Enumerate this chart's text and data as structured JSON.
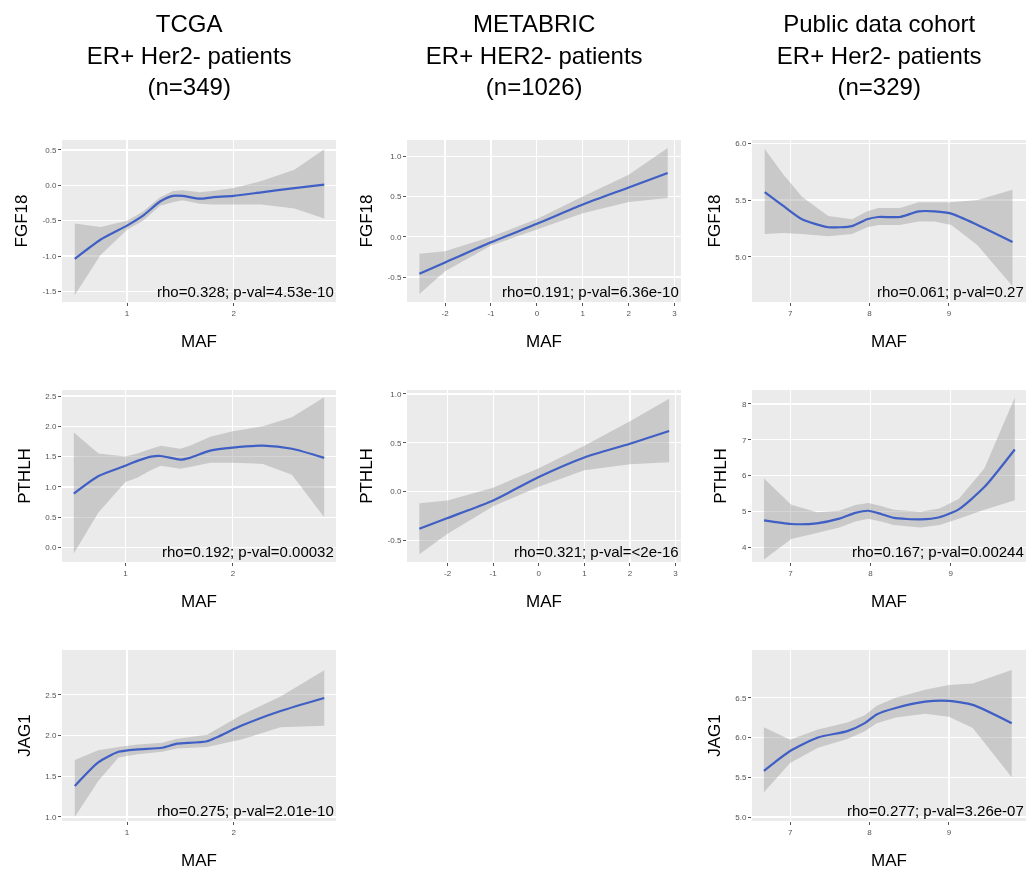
{
  "chart_data": [
    {
      "type": "line",
      "title": "TCGA\nER+ Her2- patients\n(n=349)",
      "xlabel": "MAF",
      "ylabel": "FGF18",
      "grid": true,
      "xlim": [
        0.39,
        2.96
      ],
      "xticks": [
        1,
        2
      ],
      "ylim": [
        -1.65,
        0.64
      ],
      "yticks": [
        {
          "value": 0.5,
          "label": "0.5"
        },
        {
          "value": 0,
          "label": "0.0"
        },
        {
          "value": -0.5,
          "label": "-0.5"
        },
        {
          "value": -1,
          "label": "-1.0"
        },
        {
          "value": -1.5,
          "label": "-1.5"
        }
      ],
      "annotations": [
        "rho=0.328; p-val=4.53e-10"
      ],
      "series": [
        {
          "color": "#3f5fc4",
          "x": [
            0.51,
            0.75,
            1.0,
            1.15,
            1.31,
            1.43,
            1.52,
            1.68,
            1.8,
            2.0,
            2.26,
            2.57,
            2.85
          ],
          "values": [
            -1.04,
            -0.77,
            -0.57,
            -0.43,
            -0.23,
            -0.15,
            -0.15,
            -0.19,
            -0.17,
            -0.15,
            -0.1,
            -0.04,
            0.01
          ],
          "lower": [
            -1.55,
            -0.99,
            -0.63,
            -0.5,
            -0.29,
            -0.24,
            -0.21,
            -0.26,
            -0.27,
            -0.27,
            -0.27,
            -0.33,
            -0.47
          ],
          "upper": [
            -0.54,
            -0.59,
            -0.5,
            -0.37,
            -0.17,
            -0.08,
            -0.07,
            -0.1,
            -0.08,
            -0.04,
            0.06,
            0.22,
            0.51
          ]
        }
      ]
    },
    {
      "type": "line",
      "title": "METABRIC\nER+ HER2- patients\n(n=1026)",
      "xlabel": "MAF",
      "ylabel": "FGF18",
      "grid": true,
      "xlim": [
        -2.83,
        3.14
      ],
      "xticks": [
        -2,
        -1,
        0,
        1,
        2,
        3
      ],
      "ylim": [
        -0.81,
        1.2
      ],
      "yticks": [
        {
          "value": 1,
          "label": "1.0"
        },
        {
          "value": 0.5,
          "label": "0.5"
        },
        {
          "value": 0,
          "label": "0.0"
        },
        {
          "value": -0.5,
          "label": "-0.5"
        }
      ],
      "annotations": [
        "rho=0.191; p-val=6.36e-10"
      ],
      "series": [
        {
          "color": "#3f5fc4",
          "x": [
            -2.56,
            -2,
            -1,
            0,
            1,
            2,
            2.85
          ],
          "values": [
            -0.46,
            -0.32,
            -0.07,
            0.16,
            0.4,
            0.61,
            0.79
          ],
          "lower": [
            -0.71,
            -0.43,
            -0.11,
            0.09,
            0.29,
            0.43,
            0.48
          ],
          "upper": [
            -0.21,
            -0.18,
            0.0,
            0.22,
            0.5,
            0.77,
            1.1
          ]
        }
      ]
    },
    {
      "type": "line",
      "title": "Public data cohort\nER+ Her2- patients\n(n=329)",
      "xlabel": "MAF",
      "ylabel": "FGF18",
      "grid": true,
      "xlim": [
        6.52,
        9.97
      ],
      "xticks": [
        7,
        8,
        9
      ],
      "ylim": [
        4.6,
        6.03
      ],
      "yticks": [
        {
          "value": 6,
          "label": "6.0"
        },
        {
          "value": 5.5,
          "label": "5.5"
        },
        {
          "value": 5,
          "label": "5.0"
        }
      ],
      "annotations": [
        "rho=0.061; p-val=0.27"
      ],
      "series": [
        {
          "color": "#3f5fc4",
          "x": [
            6.68,
            6.91,
            7.15,
            7.48,
            7.78,
            7.97,
            8.11,
            8.38,
            8.62,
            8.82,
            9.03,
            9.36,
            9.8
          ],
          "values": [
            5.57,
            5.45,
            5.33,
            5.26,
            5.27,
            5.33,
            5.35,
            5.35,
            5.4,
            5.4,
            5.38,
            5.28,
            5.13
          ],
          "lower": [
            5.2,
            5.21,
            5.2,
            5.18,
            5.2,
            5.26,
            5.28,
            5.28,
            5.31,
            5.31,
            5.28,
            5.1,
            4.74
          ],
          "upper": [
            5.95,
            5.73,
            5.53,
            5.36,
            5.33,
            5.4,
            5.43,
            5.43,
            5.48,
            5.48,
            5.48,
            5.5,
            5.59
          ]
        }
      ]
    },
    {
      "type": "line",
      "xlabel": "MAF",
      "ylabel": "PTHLH",
      "grid": true,
      "xlim": [
        0.41,
        2.96
      ],
      "xticks": [
        1,
        2
      ],
      "ylim": [
        -0.24,
        2.6
      ],
      "yticks": [
        {
          "value": 2.5,
          "label": "2.5"
        },
        {
          "value": 2,
          "label": "2.0"
        },
        {
          "value": 1.5,
          "label": "1.5"
        },
        {
          "value": 1,
          "label": "1.0"
        },
        {
          "value": 0.5,
          "label": "0.5"
        },
        {
          "value": 0,
          "label": "0.0"
        }
      ],
      "annotations": [
        "rho=0.192; p-val=0.00032"
      ],
      "series": [
        {
          "color": "#3f5fc4",
          "x": [
            0.52,
            0.75,
            1.0,
            1.11,
            1.24,
            1.33,
            1.51,
            1.6,
            1.79,
            2.0,
            2.28,
            2.55,
            2.85
          ],
          "values": [
            0.89,
            1.18,
            1.35,
            1.43,
            1.5,
            1.51,
            1.45,
            1.48,
            1.6,
            1.65,
            1.68,
            1.63,
            1.48
          ],
          "lower": [
            -0.1,
            0.58,
            1.08,
            1.15,
            1.28,
            1.35,
            1.3,
            1.33,
            1.4,
            1.4,
            1.38,
            1.2,
            0.5
          ],
          "upper": [
            1.9,
            1.55,
            1.5,
            1.55,
            1.63,
            1.68,
            1.63,
            1.68,
            1.83,
            1.92,
            2.0,
            2.15,
            2.48
          ]
        }
      ]
    },
    {
      "type": "line",
      "xlabel": "MAF",
      "ylabel": "PTHLH",
      "grid": true,
      "xlim": [
        -2.89,
        3.12
      ],
      "xticks": [
        -2,
        -1,
        0,
        1,
        2,
        3
      ],
      "ylim": [
        -0.72,
        1.04
      ],
      "yticks": [
        {
          "value": 1,
          "label": "1.0"
        },
        {
          "value": 0.5,
          "label": "0.5"
        },
        {
          "value": 0,
          "label": "0.0"
        },
        {
          "value": -0.5,
          "label": "-0.5"
        }
      ],
      "annotations": [
        "rho=0.321; p-val=<2e-16"
      ],
      "series": [
        {
          "color": "#3f5fc4",
          "x": [
            -2.62,
            -2,
            -1,
            0,
            1,
            2,
            2.86
          ],
          "values": [
            -0.38,
            -0.27,
            -0.09,
            0.15,
            0.35,
            0.49,
            0.62
          ],
          "lower": [
            -0.64,
            -0.43,
            -0.15,
            0.05,
            0.22,
            0.28,
            0.3
          ],
          "upper": [
            -0.12,
            -0.09,
            0.04,
            0.24,
            0.47,
            0.72,
            0.95
          ]
        }
      ]
    },
    {
      "type": "line",
      "xlabel": "MAF",
      "ylabel": "PTHLH",
      "grid": true,
      "xlim": [
        6.52,
        9.94
      ],
      "xticks": [
        7,
        8,
        9
      ],
      "ylim": [
        3.59,
        8.39
      ],
      "yticks": [
        8,
        7,
        6,
        5,
        4
      ],
      "annotations": [
        "rho=0.167; p-val=0.00244"
      ],
      "series": [
        {
          "color": "#3f5fc4",
          "x": [
            6.67,
            7.01,
            7.33,
            7.61,
            7.81,
            7.97,
            8.13,
            8.29,
            8.62,
            8.86,
            9.1,
            9.42,
            9.8
          ],
          "values": [
            4.75,
            4.65,
            4.67,
            4.8,
            4.96,
            5.02,
            4.93,
            4.82,
            4.78,
            4.84,
            5.06,
            5.68,
            6.73
          ],
          "lower": [
            3.66,
            4.23,
            4.4,
            4.55,
            4.72,
            4.8,
            4.72,
            4.62,
            4.55,
            4.62,
            4.8,
            5.05,
            5.31
          ],
          "upper": [
            5.92,
            5.19,
            4.98,
            5.02,
            5.18,
            5.24,
            5.15,
            5.05,
            4.99,
            5.08,
            5.35,
            6.2,
            8.18
          ]
        }
      ]
    },
    {
      "type": "line",
      "xlabel": "MAF",
      "ylabel": "JAG1",
      "grid": true,
      "xlim": [
        0.39,
        2.96
      ],
      "xticks": [
        1,
        2
      ],
      "ylim": [
        0.95,
        3.05
      ],
      "yticks": [
        {
          "value": 2.5,
          "label": "2.5"
        },
        {
          "value": 2,
          "label": "2.0"
        },
        {
          "value": 1.5,
          "label": "1.5"
        },
        {
          "value": 1,
          "label": "1.0"
        }
      ],
      "annotations": [
        "rho=0.275; p-val=2.01e-10"
      ],
      "series": [
        {
          "color": "#3f5fc4",
          "x": [
            0.51,
            0.73,
            0.92,
            1.1,
            1.33,
            1.47,
            1.75,
            2.07,
            2.44,
            2.85
          ],
          "values": [
            1.38,
            1.67,
            1.8,
            1.83,
            1.85,
            1.9,
            1.93,
            2.12,
            2.3,
            2.46
          ],
          "lower": [
            1.0,
            1.44,
            1.73,
            1.77,
            1.8,
            1.84,
            1.86,
            1.95,
            2.1,
            2.12
          ],
          "upper": [
            1.7,
            1.82,
            1.86,
            1.89,
            1.91,
            1.96,
            2.01,
            2.25,
            2.48,
            2.8
          ]
        }
      ]
    },
    {
      "type": "line",
      "xlabel": "MAF",
      "ylabel": "JAG1",
      "grid": true,
      "xlim": [
        6.52,
        9.97
      ],
      "xticks": [
        7,
        8,
        9
      ],
      "ylim": [
        4.95,
        7.1
      ],
      "yticks": [
        {
          "value": 6.5,
          "label": "6.5"
        },
        {
          "value": 6,
          "label": "6.0"
        },
        {
          "value": 5.5,
          "label": "5.5"
        },
        {
          "value": 5,
          "label": "5.0"
        }
      ],
      "annotations": [
        "rho=0.277; p-val=3.26e-07"
      ],
      "series": [
        {
          "color": "#3f5fc4",
          "x": [
            6.67,
            7.0,
            7.35,
            7.72,
            7.94,
            8.09,
            8.33,
            8.7,
            9.0,
            9.3,
            9.79
          ],
          "values": [
            5.58,
            5.83,
            6.0,
            6.08,
            6.18,
            6.29,
            6.37,
            6.45,
            6.46,
            6.41,
            6.18
          ],
          "lower": [
            5.31,
            5.68,
            5.87,
            5.98,
            6.08,
            6.18,
            6.25,
            6.3,
            6.26,
            6.12,
            5.5
          ],
          "upper": [
            6.13,
            5.97,
            6.1,
            6.19,
            6.28,
            6.4,
            6.5,
            6.6,
            6.66,
            6.68,
            6.85
          ]
        }
      ]
    }
  ]
}
